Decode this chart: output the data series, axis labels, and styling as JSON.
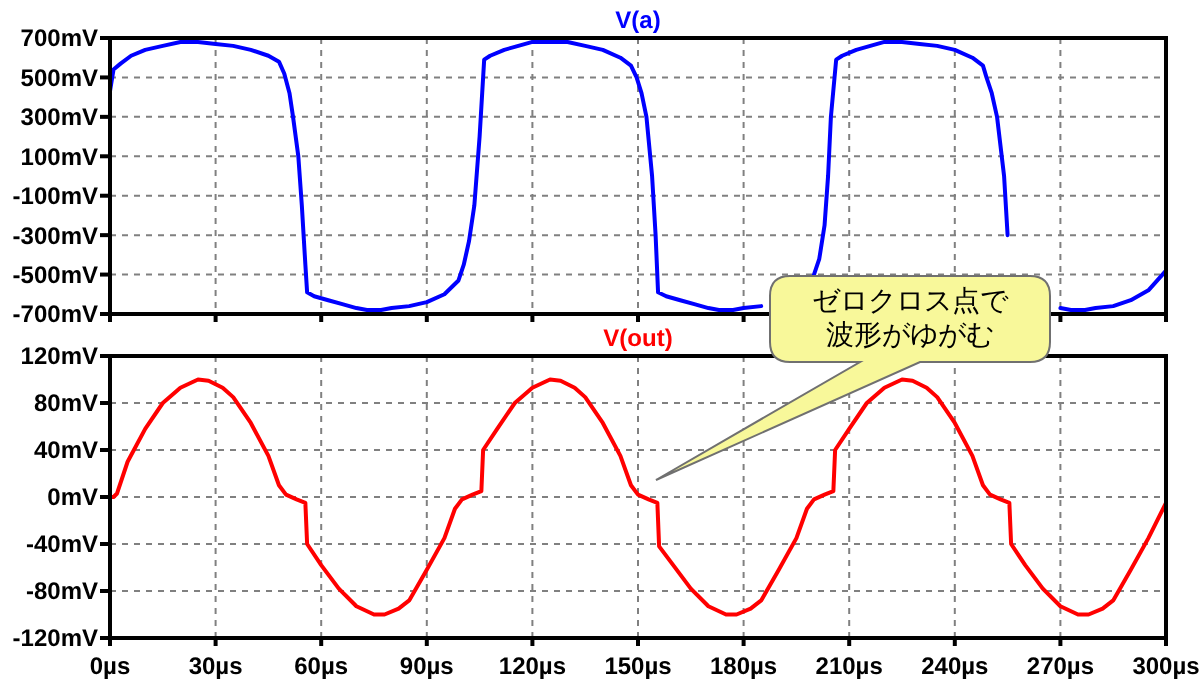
{
  "chart_data": [
    {
      "type": "line",
      "title": "V(a)",
      "tick_labels": "y",
      "grid": true,
      "xlim": [
        0,
        300
      ],
      "xticks": [
        0,
        30,
        60,
        90,
        120,
        150,
        180,
        210,
        240,
        270,
        300
      ],
      "ylim": [
        -700,
        700
      ],
      "yticks": [
        {
          "value": -700,
          "label": "-700mV"
        },
        {
          "value": -500,
          "label": "-500mV"
        },
        {
          "value": -300,
          "label": "-300mV"
        },
        {
          "value": -100,
          "label": "-100mV"
        },
        {
          "value": 100,
          "label": "100mV"
        },
        {
          "value": 300,
          "label": "300mV"
        },
        {
          "value": 500,
          "label": "500mV"
        },
        {
          "value": 700,
          "label": "700mV"
        }
      ],
      "series": [
        {
          "color": "#0000ff",
          "x": [
            0,
            1,
            3,
            6,
            10,
            15,
            20,
            25,
            30,
            35,
            40,
            45,
            48,
            49.5,
            51,
            52,
            53.5,
            54.5,
            55.5,
            56,
            58,
            62,
            66,
            70,
            73,
            77,
            80,
            85,
            90,
            95,
            99,
            100.5,
            102,
            103.5,
            105,
            106.3,
            108,
            112,
            116,
            120,
            125,
            130,
            135,
            140,
            145,
            148,
            149.6,
            151,
            152.4,
            154,
            155,
            155.7,
            158,
            162,
            166,
            170,
            173,
            177,
            180,
            185,
            190,
            195,
            199.8,
            201.5,
            203,
            204,
            204.8,
            206.3,
            208,
            212,
            216,
            220,
            225,
            230,
            235,
            240,
            245,
            248,
            249,
            250.5,
            252,
            254,
            255,
            256,
            258,
            262,
            266,
            270,
            273,
            277,
            280,
            285,
            290,
            295,
            300
          ],
          "values": [
            430,
            540,
            570,
            610,
            640,
            660,
            680,
            680,
            670,
            660,
            640,
            610,
            580,
            520,
            420,
            300,
            100,
            -150,
            -450,
            -590,
            -610,
            -630,
            -650,
            -670,
            -680,
            -680,
            -670,
            -660,
            -640,
            -600,
            -530,
            -450,
            -330,
            -150,
            200,
            590,
            610,
            640,
            660,
            680,
            680,
            680,
            660,
            640,
            600,
            560,
            500,
            420,
            300,
            0,
            -300,
            -590,
            -610,
            -630,
            -650,
            -670,
            -680,
            -680,
            -670,
            -660,
            null,
            null,
            -510,
            -420,
            -250,
            0,
            300,
            590,
            610,
            640,
            660,
            680,
            680,
            670,
            660,
            640,
            600,
            560,
            500,
            420,
            300,
            0,
            -300,
            null,
            null,
            null,
            null,
            -670,
            -680,
            -680,
            -670,
            -660,
            -630,
            -580,
            -480
          ]
        }
      ]
    },
    {
      "type": "line",
      "title": "V(out)",
      "grid": true,
      "xlim": [
        0,
        300
      ],
      "xticks": [
        {
          "value": 0,
          "label": "0µs"
        },
        {
          "value": 30,
          "label": "30µs"
        },
        {
          "value": 60,
          "label": "60µs"
        },
        {
          "value": 90,
          "label": "90µs"
        },
        {
          "value": 120,
          "label": "120µs"
        },
        {
          "value": 150,
          "label": "150µs"
        },
        {
          "value": 180,
          "label": "180µs"
        },
        {
          "value": 210,
          "label": "210µs"
        },
        {
          "value": 240,
          "label": "240µs"
        },
        {
          "value": 270,
          "label": "270µs"
        },
        {
          "value": 300,
          "label": "300µs"
        }
      ],
      "ylim": [
        -120,
        120
      ],
      "yticks": [
        {
          "value": -120,
          "label": "-120mV"
        },
        {
          "value": -80,
          "label": "-80mV"
        },
        {
          "value": -40,
          "label": "-40mV"
        },
        {
          "value": 0,
          "label": "0mV"
        },
        {
          "value": 40,
          "label": "40mV"
        },
        {
          "value": 80,
          "label": "80mV"
        },
        {
          "value": 120,
          "label": "120mV"
        }
      ],
      "annotations": [
        "ゼロクロス点で波形がゆがむ"
      ],
      "series": [
        {
          "color": "#ff0000",
          "x": [
            0,
            1,
            2,
            5,
            10,
            15,
            20,
            25,
            28,
            32,
            35,
            40,
            45,
            48,
            50,
            53,
            55.5,
            56,
            60,
            65,
            70,
            75,
            78,
            82,
            85,
            90,
            95,
            98,
            100,
            103,
            105.5,
            106,
            110,
            115,
            120,
            125,
            128,
            132,
            135,
            140,
            145,
            148,
            150,
            153,
            155.5,
            156,
            160,
            165,
            170,
            175,
            178,
            182,
            185,
            190,
            195,
            198,
            200,
            203,
            205.5,
            206,
            210,
            215,
            220,
            225,
            228,
            232,
            235,
            240,
            245,
            248,
            250,
            253,
            255.5,
            256,
            260,
            265,
            270,
            275,
            278,
            282,
            285,
            290,
            295,
            300
          ],
          "values": [
            0,
            0,
            3,
            30,
            58,
            80,
            93,
            100,
            99,
            93,
            85,
            63,
            35,
            10,
            2,
            -2,
            -5,
            -40,
            -58,
            -78,
            -93,
            -100,
            -100,
            -95,
            -88,
            -62,
            -35,
            -10,
            -2,
            2,
            5,
            40,
            58,
            80,
            93,
            100,
            99,
            93,
            85,
            63,
            35,
            10,
            2,
            -2,
            -5,
            -42,
            -58,
            -78,
            -93,
            -100,
            -100,
            -95,
            -88,
            -62,
            -35,
            -10,
            -2,
            2,
            5,
            40,
            58,
            80,
            93,
            100,
            99,
            93,
            85,
            63,
            35,
            10,
            2,
            -2,
            -5,
            -40,
            -58,
            -78,
            -93,
            -100,
            -100,
            -95,
            -88,
            -62,
            -35,
            -5
          ]
        }
      ]
    }
  ]
}
